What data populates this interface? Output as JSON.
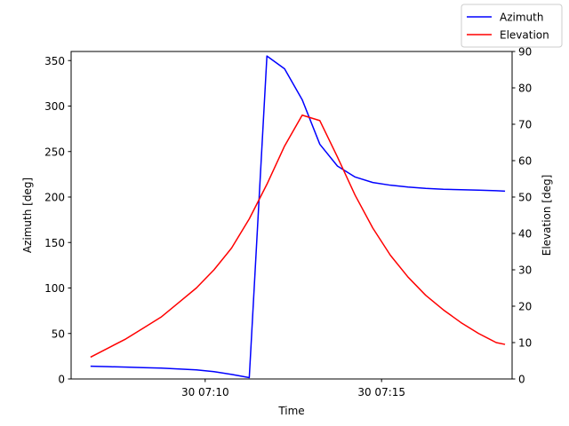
{
  "chart_data": {
    "type": "line",
    "xlabel": "Time",
    "ylabel_left": "Azimuth [deg]",
    "ylabel_right": "Elevation [deg]",
    "x_ticks": [
      "30 07:10",
      "30 07:15"
    ],
    "x_tick_minutes": [
      10,
      15
    ],
    "xlim_minutes": [
      6.2,
      18.7
    ],
    "ylim_left": [
      0,
      360
    ],
    "ylim_right": [
      0,
      90
    ],
    "yticks_left": [
      0,
      50,
      100,
      150,
      200,
      250,
      300,
      350
    ],
    "yticks_right": [
      0,
      10,
      20,
      30,
      40,
      50,
      60,
      70,
      80,
      90
    ],
    "grid": false,
    "legend_position": "top-right",
    "x_minutes": [
      6.75,
      7.25,
      7.75,
      8.25,
      8.75,
      9.25,
      9.75,
      10.25,
      10.75,
      11.25,
      11.75,
      12.25,
      12.75,
      13.25,
      13.75,
      14.25,
      14.75,
      15.25,
      15.75,
      16.25,
      16.75,
      17.25,
      17.75,
      18.25,
      18.5
    ],
    "series": [
      {
        "name": "Azimuth",
        "color": "#0000ff",
        "axis": "left",
        "x_minutes": [
          6.75,
          7.25,
          7.75,
          8.25,
          8.75,
          9.25,
          9.75,
          10.25,
          10.75,
          11.25,
          11.75,
          12.25,
          12.75,
          13.25,
          13.75,
          14.25,
          14.75,
          15.25,
          15.75,
          16.25,
          16.75,
          17.25,
          17.75,
          18.25,
          18.5
        ],
        "values": [
          14,
          13.5,
          13,
          12.5,
          12,
          11,
          10,
          8,
          5,
          1.5,
          355,
          341,
          307,
          258,
          234,
          222,
          216,
          213,
          211,
          209.5,
          208.5,
          208,
          207.5,
          207,
          206.5
        ]
      },
      {
        "name": "Elevation",
        "color": "#ff0000",
        "axis": "right",
        "x_minutes": [
          6.75,
          7.25,
          7.75,
          8.25,
          8.75,
          9.25,
          9.75,
          10.25,
          10.75,
          11.25,
          11.75,
          12.25,
          12.75,
          13.25,
          13.75,
          14.25,
          14.75,
          15.25,
          15.75,
          16.25,
          16.75,
          17.25,
          17.75,
          18.25,
          18.5
        ],
        "values": [
          6,
          8.5,
          11,
          14,
          17,
          21,
          25,
          30,
          36,
          44,
          53.5,
          64,
          72.5,
          71,
          61,
          50.5,
          41.5,
          34,
          28,
          23,
          19,
          15.5,
          12.5,
          10,
          9.5
        ]
      }
    ]
  }
}
